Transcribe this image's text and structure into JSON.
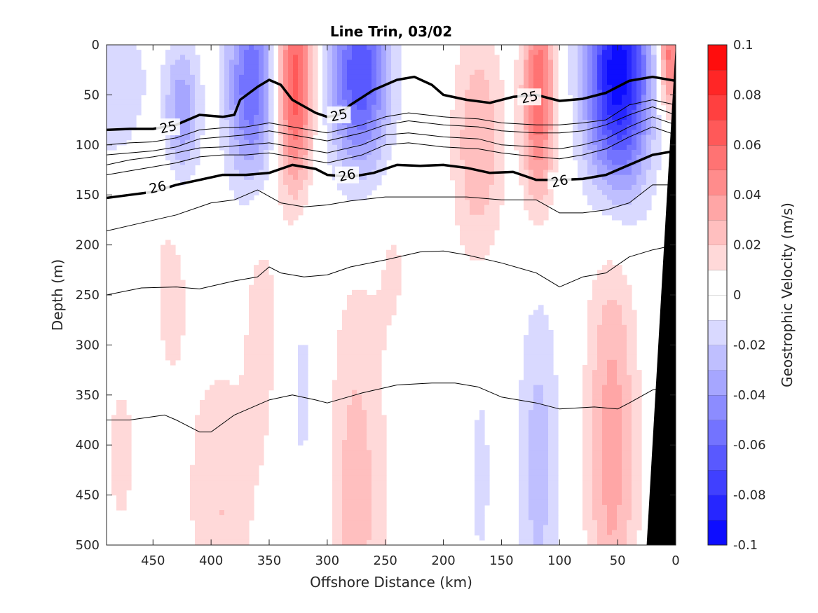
{
  "chart_data": {
    "type": "contour",
    "title": "Line Trin, 03/02",
    "xlabel": "Offshore Distance (km)",
    "ylabel": "Depth (m)",
    "xlim": [
      490,
      0
    ],
    "ylim": [
      0,
      500
    ],
    "x_reversed": true,
    "y_reversed": true,
    "xticks": [
      450,
      400,
      350,
      300,
      250,
      200,
      150,
      100,
      50,
      0
    ],
    "yticks": [
      0,
      50,
      100,
      150,
      200,
      250,
      300,
      350,
      400,
      450,
      500
    ],
    "colorbar": {
      "label": "Geostrophic Velocity (m/s)",
      "range": [
        -0.1,
        0.1
      ],
      "levels": 20,
      "ticks": [
        0.1,
        0.08,
        0.06,
        0.04,
        0.02,
        0,
        -0.02,
        -0.04,
        -0.06,
        -0.08,
        -0.1
      ],
      "tick_labels": [
        "0.1",
        "0.08",
        "0.06",
        "0.04",
        "0.02",
        "0",
        "-0.02",
        "-0.04",
        "-0.06",
        "-0.08",
        "-0.1"
      ],
      "colormap": "blue-white-red",
      "neg_color": "#0000ff",
      "pos_color": "#ff0000"
    },
    "velocity_cores": [
      {
        "x_center": 490,
        "x_halfwidth": 40,
        "depth_center": 40,
        "depth_halfwidth": 80,
        "value": -0.02
      },
      {
        "x_center": 425,
        "x_halfwidth": 15,
        "depth_center": 70,
        "depth_halfwidth": 70,
        "value": -0.04
      },
      {
        "x_center": 365,
        "x_halfwidth": 22,
        "depth_center": 40,
        "depth_halfwidth": 100,
        "value": -0.06
      },
      {
        "x_center": 328,
        "x_halfwidth": 16,
        "depth_center": 40,
        "depth_halfwidth": 110,
        "value": 0.07
      },
      {
        "x_center": 272,
        "x_halfwidth": 26,
        "depth_center": 30,
        "depth_halfwidth": 100,
        "value": -0.07
      },
      {
        "x_center": 170,
        "x_halfwidth": 22,
        "depth_center": 100,
        "depth_halfwidth": 120,
        "value": 0.03
      },
      {
        "x_center": 118,
        "x_halfwidth": 14,
        "depth_center": 50,
        "depth_halfwidth": 110,
        "value": 0.06
      },
      {
        "x_center": 50,
        "x_halfwidth": 28,
        "depth_center": 30,
        "depth_halfwidth": 120,
        "value": -0.1
      },
      {
        "x_center": 5,
        "x_halfwidth": 10,
        "depth_center": 10,
        "depth_halfwidth": 60,
        "value": 0.06
      },
      {
        "x_center": 242,
        "x_halfwidth": 16,
        "depth_center": 220,
        "depth_halfwidth": 90,
        "value": 0.01
      },
      {
        "x_center": 356,
        "x_halfwidth": 16,
        "depth_center": 280,
        "depth_halfwidth": 150,
        "value": 0.015
      },
      {
        "x_center": 320,
        "x_halfwidth": 18,
        "depth_center": 350,
        "depth_halfwidth": 200,
        "value": -0.012
      },
      {
        "x_center": 275,
        "x_halfwidth": 26,
        "depth_center": 450,
        "depth_halfwidth": 220,
        "value": 0.025
      },
      {
        "x_center": 392,
        "x_halfwidth": 28,
        "depth_center": 470,
        "depth_halfwidth": 160,
        "value": 0.02
      },
      {
        "x_center": 435,
        "x_halfwidth": 22,
        "depth_center": 240,
        "depth_halfwidth": 150,
        "value": 0.012
      },
      {
        "x_center": 478,
        "x_halfwidth": 20,
        "depth_center": 410,
        "depth_halfwidth": 130,
        "value": 0.012
      },
      {
        "x_center": 168,
        "x_halfwidth": 14,
        "depth_center": 430,
        "depth_halfwidth": 160,
        "value": -0.012
      },
      {
        "x_center": 118,
        "x_halfwidth": 18,
        "depth_center": 420,
        "depth_halfwidth": 180,
        "value": -0.025
      },
      {
        "x_center": 55,
        "x_halfwidth": 22,
        "depth_center": 400,
        "depth_halfwidth": 230,
        "value": 0.035
      }
    ],
    "isopycnals": [
      {
        "label": "25",
        "bold": true,
        "x": [
          490,
          470,
          450,
          430,
          410,
          390,
          380,
          375,
          360,
          350,
          340,
          330,
          310,
          300,
          290,
          280,
          260,
          240,
          225,
          210,
          200,
          180,
          160,
          140,
          120,
          100,
          80,
          60,
          40,
          20,
          0
        ],
        "depth": [
          85,
          84,
          84,
          80,
          70,
          72,
          70,
          55,
          42,
          35,
          40,
          55,
          68,
          72,
          70,
          60,
          45,
          35,
          32,
          40,
          50,
          55,
          58,
          52,
          50,
          56,
          54,
          48,
          36,
          32,
          36
        ],
        "label_positions": [
          [
            437,
            82
          ],
          [
            290,
            70
          ],
          [
            126,
            52
          ]
        ]
      },
      {
        "label": "",
        "bold": false,
        "x": [
          490,
          470,
          450,
          430,
          410,
          390,
          370,
          350,
          330,
          300,
          270,
          250,
          230,
          200,
          170,
          150,
          120,
          100,
          80,
          60,
          40,
          20,
          0
        ],
        "depth": [
          100,
          98,
          97,
          93,
          85,
          83,
          82,
          78,
          82,
          88,
          80,
          72,
          68,
          72,
          74,
          78,
          80,
          80,
          78,
          75,
          60,
          55,
          60
        ]
      },
      {
        "label": "",
        "bold": false,
        "x": [
          490,
          470,
          450,
          430,
          410,
          390,
          370,
          350,
          330,
          300,
          270,
          250,
          230,
          200,
          170,
          150,
          120,
          100,
          80,
          60,
          40,
          20,
          0
        ],
        "depth": [
          110,
          108,
          106,
          102,
          94,
          92,
          90,
          86,
          90,
          96,
          88,
          80,
          76,
          80,
          82,
          86,
          88,
          88,
          86,
          80,
          70,
          62,
          70
        ]
      },
      {
        "label": "",
        "bold": false,
        "x": [
          490,
          470,
          450,
          430,
          410,
          390,
          370,
          350,
          330,
          300,
          270,
          250,
          230,
          200,
          170,
          150,
          120,
          100,
          80,
          60,
          40,
          20,
          0
        ],
        "depth": [
          120,
          115,
          112,
          108,
          103,
          102,
          100,
          98,
          102,
          108,
          100,
          90,
          88,
          92,
          94,
          100,
          102,
          104,
          100,
          94,
          82,
          72,
          80
        ]
      },
      {
        "label": "",
        "bold": false,
        "x": [
          490,
          470,
          450,
          430,
          410,
          390,
          370,
          350,
          330,
          300,
          270,
          250,
          230,
          200,
          170,
          150,
          120,
          100,
          80,
          60,
          40,
          20,
          0
        ],
        "depth": [
          130,
          126,
          122,
          118,
          112,
          110,
          110,
          108,
          112,
          118,
          110,
          100,
          98,
          102,
          104,
          108,
          112,
          114,
          110,
          104,
          92,
          82,
          90
        ]
      },
      {
        "label": "26",
        "bold": true,
        "x": [
          490,
          470,
          450,
          430,
          410,
          390,
          370,
          350,
          330,
          310,
          300,
          280,
          260,
          240,
          220,
          200,
          180,
          160,
          140,
          120,
          100,
          80,
          60,
          40,
          20,
          0
        ],
        "depth": [
          153,
          150,
          147,
          140,
          135,
          130,
          130,
          128,
          120,
          124,
          130,
          132,
          128,
          120,
          121,
          120,
          123,
          128,
          127,
          135,
          135,
          134,
          130,
          120,
          110,
          106
        ],
        "label_positions": [
          [
            446,
            142
          ],
          [
            283,
            130
          ],
          [
            100,
            136
          ]
        ]
      },
      {
        "label": "",
        "bold": false,
        "x": [
          490,
          460,
          430,
          400,
          380,
          360,
          340,
          320,
          300,
          280,
          250,
          220,
          200,
          180,
          150,
          120,
          100,
          80,
          60,
          40,
          20,
          0
        ],
        "depth": [
          186,
          178,
          170,
          158,
          155,
          145,
          158,
          162,
          160,
          156,
          152,
          152,
          152,
          152,
          155,
          155,
          168,
          168,
          165,
          158,
          140,
          140
        ]
      },
      {
        "label": "",
        "bold": false,
        "x": [
          490,
          460,
          430,
          410,
          380,
          360,
          350,
          340,
          320,
          300,
          280,
          250,
          220,
          200,
          180,
          150,
          120,
          100,
          80,
          60,
          40,
          20,
          0
        ],
        "depth": [
          250,
          243,
          242,
          244,
          236,
          232,
          222,
          228,
          232,
          230,
          222,
          215,
          207,
          206,
          210,
          218,
          228,
          242,
          232,
          228,
          212,
          205,
          200
        ]
      },
      {
        "label": "",
        "bold": false,
        "x": [
          490,
          470,
          440,
          430,
          410,
          400,
          380,
          350,
          330,
          310,
          300,
          270,
          240,
          210,
          190,
          170,
          150,
          120,
          100,
          70,
          50,
          40,
          20,
          0
        ],
        "depth": [
          375,
          375,
          370,
          375,
          387,
          387,
          370,
          355,
          350,
          355,
          358,
          348,
          340,
          338,
          338,
          342,
          352,
          358,
          364,
          362,
          364,
          358,
          345,
          340
        ]
      }
    ],
    "bathymetry": {
      "top_x": 0,
      "bottom_x": 25,
      "color": "#000000"
    }
  }
}
